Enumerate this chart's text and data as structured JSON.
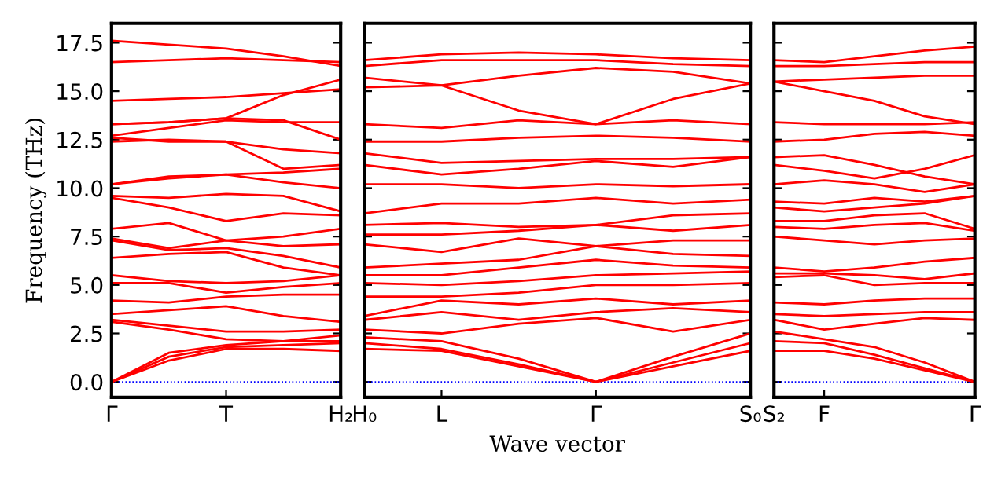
{
  "chart_data": [
    {
      "type": "line",
      "ylabel": "Frequency (THz)",
      "categories": [
        "Γ",
        null,
        "T",
        null,
        "H₂"
      ],
      "ylim": [
        -0.8,
        18.5
      ],
      "yticks": [
        {
          "value": 0,
          "label": "0.0"
        },
        {
          "value": 2.5,
          "label": "2.5"
        },
        {
          "value": 5,
          "label": "5.0"
        },
        {
          "value": 7.5,
          "label": "7.5"
        },
        {
          "value": 10,
          "label": "10.0"
        },
        {
          "value": 12.5,
          "label": "12.5"
        },
        {
          "value": 15,
          "label": "15.0"
        },
        {
          "value": 17.5,
          "label": "17.5"
        }
      ],
      "grid": false,
      "marker": "none",
      "line_style": "solid",
      "ref_lines": [
        {
          "axis": "y",
          "value": 0,
          "color": "#0000ff",
          "line_style": "dotted"
        }
      ],
      "series": [
        {
          "color": "#ff0000",
          "values": [
            0,
            1.1,
            1.7,
            1.7,
            1.6
          ]
        },
        {
          "color": "#ff0000",
          "values": [
            0,
            1.3,
            1.8,
            1.9,
            2.0
          ]
        },
        {
          "color": "#ff0000",
          "values": [
            0,
            1.5,
            1.9,
            2.1,
            2.4
          ]
        },
        {
          "color": "#ff0000",
          "values": [
            3.1,
            2.7,
            2.2,
            2.1,
            2.1
          ]
        },
        {
          "color": "#ff0000",
          "values": [
            3.2,
            2.9,
            2.6,
            2.6,
            2.7
          ]
        },
        {
          "color": "#ff0000",
          "values": [
            3.5,
            3.7,
            3.9,
            3.4,
            3.1
          ]
        },
        {
          "color": "#ff0000",
          "values": [
            4.2,
            4.1,
            4.4,
            4.5,
            4.5
          ]
        },
        {
          "color": "#ff0000",
          "values": [
            5.1,
            5.1,
            4.6,
            4.9,
            5.1
          ]
        },
        {
          "color": "#ff0000",
          "values": [
            5.5,
            5.2,
            5.1,
            5.2,
            5.5
          ]
        },
        {
          "color": "#ff0000",
          "values": [
            6.4,
            6.6,
            6.7,
            5.9,
            5.5
          ]
        },
        {
          "color": "#ff0000",
          "values": [
            7.3,
            6.8,
            6.9,
            6.5,
            5.9
          ]
        },
        {
          "color": "#ff0000",
          "values": [
            7.4,
            6.9,
            7.3,
            7.0,
            7.1
          ]
        },
        {
          "color": "#ff0000",
          "values": [
            7.9,
            8.2,
            7.3,
            7.5,
            7.9
          ]
        },
        {
          "color": "#ff0000",
          "values": [
            9.5,
            9.0,
            8.3,
            8.7,
            8.6
          ]
        },
        {
          "color": "#ff0000",
          "values": [
            9.6,
            9.5,
            9.7,
            9.6,
            8.8
          ]
        },
        {
          "color": "#ff0000",
          "values": [
            10.2,
            10.5,
            10.7,
            10.3,
            10.0
          ]
        },
        {
          "color": "#ff0000",
          "values": [
            10.2,
            10.6,
            10.7,
            10.8,
            11.0
          ]
        },
        {
          "color": "#ff0000",
          "values": [
            12.4,
            12.5,
            12.4,
            11.0,
            11.2
          ]
        },
        {
          "color": "#ff0000",
          "values": [
            12.6,
            12.4,
            12.4,
            12.0,
            11.8
          ]
        },
        {
          "color": "#ff0000",
          "values": [
            12.7,
            13.1,
            13.5,
            13.4,
            13.4
          ]
        },
        {
          "color": "#ff0000",
          "values": [
            13.3,
            13.4,
            13.6,
            13.5,
            12.5
          ]
        },
        {
          "color": "#ff0000",
          "values": [
            13.3,
            13.4,
            13.6,
            14.8,
            15.6
          ]
        },
        {
          "color": "#ff0000",
          "values": [
            14.5,
            14.6,
            14.7,
            14.9,
            15.1
          ]
        },
        {
          "color": "#ff0000",
          "values": [
            16.5,
            16.6,
            16.7,
            16.6,
            16.5
          ]
        },
        {
          "color": "#ff0000",
          "values": [
            17.6,
            17.4,
            17.2,
            16.8,
            16.3
          ]
        }
      ]
    },
    {
      "type": "line",
      "xlabel": "Wave vector",
      "categories": [
        "H₀",
        "L",
        null,
        "Γ",
        null,
        "S₀"
      ],
      "ylim": [
        -0.8,
        18.5
      ],
      "yticks": [
        {
          "value": 0,
          "label": null
        },
        {
          "value": 2.5,
          "label": null
        },
        {
          "value": 5,
          "label": null
        },
        {
          "value": 7.5,
          "label": null
        },
        {
          "value": 10,
          "label": null
        },
        {
          "value": 12.5,
          "label": null
        },
        {
          "value": 15,
          "label": null
        },
        {
          "value": 17.5,
          "label": null
        }
      ],
      "tick_labels": "x",
      "grid": false,
      "marker": "none",
      "line_style": "solid",
      "ref_lines": [
        {
          "axis": "y",
          "value": 0,
          "color": "#0000ff",
          "line_style": "dotted"
        }
      ],
      "series": [
        {
          "color": "#ff0000",
          "values": [
            1.7,
            1.6,
            0.8,
            0,
            0.8,
            1.6
          ]
        },
        {
          "color": "#ff0000",
          "values": [
            2.0,
            1.7,
            0.9,
            0,
            1.0,
            2.0
          ]
        },
        {
          "color": "#ff0000",
          "values": [
            2.3,
            2.1,
            1.2,
            0,
            1.3,
            2.5
          ]
        },
        {
          "color": "#ff0000",
          "values": [
            2.7,
            2.5,
            3.0,
            3.3,
            2.6,
            3.2
          ]
        },
        {
          "color": "#ff0000",
          "values": [
            3.2,
            3.6,
            3.2,
            3.6,
            3.8,
            3.6
          ]
        },
        {
          "color": "#ff0000",
          "values": [
            3.4,
            4.2,
            4.0,
            4.3,
            4.0,
            4.2
          ]
        },
        {
          "color": "#ff0000",
          "values": [
            4.4,
            4.4,
            4.6,
            5.0,
            5.0,
            5.1
          ]
        },
        {
          "color": "#ff0000",
          "values": [
            5.1,
            5.0,
            5.2,
            5.5,
            5.6,
            5.7
          ]
        },
        {
          "color": "#ff0000",
          "values": [
            5.5,
            5.5,
            5.9,
            6.3,
            6.0,
            5.9
          ]
        },
        {
          "color": "#ff0000",
          "values": [
            5.9,
            6.1,
            6.3,
            7.0,
            6.6,
            6.5
          ]
        },
        {
          "color": "#ff0000",
          "values": [
            7.1,
            6.7,
            7.4,
            7.0,
            7.3,
            7.3
          ]
        },
        {
          "color": "#ff0000",
          "values": [
            7.6,
            7.6,
            7.8,
            8.1,
            7.8,
            8.1
          ]
        },
        {
          "color": "#ff0000",
          "values": [
            8.1,
            8.2,
            8.0,
            8.1,
            8.6,
            8.7
          ]
        },
        {
          "color": "#ff0000",
          "values": [
            8.7,
            9.2,
            9.2,
            9.5,
            9.2,
            9.4
          ]
        },
        {
          "color": "#ff0000",
          "values": [
            10.2,
            10.2,
            10.0,
            10.2,
            10.1,
            10.2
          ]
        },
        {
          "color": "#ff0000",
          "values": [
            11.2,
            10.7,
            11.0,
            11.4,
            11.1,
            11.6
          ]
        },
        {
          "color": "#ff0000",
          "values": [
            11.8,
            11.3,
            11.4,
            11.5,
            11.5,
            11.6
          ]
        },
        {
          "color": "#ff0000",
          "values": [
            12.4,
            12.4,
            12.6,
            12.7,
            12.6,
            12.4
          ]
        },
        {
          "color": "#ff0000",
          "values": [
            13.3,
            13.1,
            13.5,
            13.3,
            13.5,
            13.3
          ]
        },
        {
          "color": "#ff0000",
          "values": [
            15.2,
            15.3,
            14.0,
            13.3,
            14.6,
            15.4
          ]
        },
        {
          "color": "#ff0000",
          "values": [
            15.7,
            15.3,
            15.8,
            16.2,
            16.0,
            15.4
          ]
        },
        {
          "color": "#ff0000",
          "values": [
            16.3,
            16.6,
            16.6,
            16.6,
            16.4,
            16.3
          ]
        },
        {
          "color": "#ff0000",
          "values": [
            16.6,
            16.9,
            17.0,
            16.9,
            16.7,
            16.6
          ]
        }
      ]
    },
    {
      "type": "line",
      "categories": [
        "S₂",
        "F",
        null,
        null,
        "Γ"
      ],
      "ylim": [
        -0.8,
        18.5
      ],
      "yticks": [
        {
          "value": 0,
          "label": null
        },
        {
          "value": 2.5,
          "label": null
        },
        {
          "value": 5,
          "label": null
        },
        {
          "value": 7.5,
          "label": null
        },
        {
          "value": 10,
          "label": null
        },
        {
          "value": 12.5,
          "label": null
        },
        {
          "value": 15,
          "label": null
        },
        {
          "value": 17.5,
          "label": null
        }
      ],
      "tick_labels": "x",
      "grid": false,
      "marker": "none",
      "line_style": "solid",
      "ref_lines": [
        {
          "axis": "y",
          "value": 0,
          "color": "#0000ff",
          "line_style": "dotted"
        }
      ],
      "series": [
        {
          "color": "#ff0000",
          "values": [
            1.6,
            1.6,
            1.2,
            0.6,
            0
          ]
        },
        {
          "color": "#ff0000",
          "values": [
            2.1,
            2.0,
            1.4,
            0.7,
            0
          ]
        },
        {
          "color": "#ff0000",
          "values": [
            2.6,
            2.2,
            1.8,
            1.0,
            0
          ]
        },
        {
          "color": "#ff0000",
          "values": [
            3.2,
            2.7,
            3.0,
            3.3,
            3.2
          ]
        },
        {
          "color": "#ff0000",
          "values": [
            3.5,
            3.4,
            3.5,
            3.6,
            3.6
          ]
        },
        {
          "color": "#ff0000",
          "values": [
            4.1,
            4.0,
            4.2,
            4.3,
            4.3
          ]
        },
        {
          "color": "#ff0000",
          "values": [
            5.4,
            5.5,
            5.0,
            5.1,
            5.1
          ]
        },
        {
          "color": "#ff0000",
          "values": [
            5.6,
            5.6,
            5.5,
            5.3,
            5.6
          ]
        },
        {
          "color": "#ff0000",
          "values": [
            5.9,
            5.7,
            5.9,
            6.2,
            6.4
          ]
        },
        {
          "color": "#ff0000",
          "values": [
            7.5,
            7.3,
            7.1,
            7.3,
            7.4
          ]
        },
        {
          "color": "#ff0000",
          "values": [
            8.0,
            7.9,
            8.1,
            8.2,
            7.8
          ]
        },
        {
          "color": "#ff0000",
          "values": [
            8.3,
            8.3,
            8.6,
            8.7,
            7.9
          ]
        },
        {
          "color": "#ff0000",
          "values": [
            9.0,
            8.8,
            9.0,
            9.2,
            9.6
          ]
        },
        {
          "color": "#ff0000",
          "values": [
            9.3,
            9.2,
            9.5,
            9.3,
            9.6
          ]
        },
        {
          "color": "#ff0000",
          "values": [
            10.2,
            10.4,
            10.2,
            9.8,
            10.2
          ]
        },
        {
          "color": "#ff0000",
          "values": [
            11.2,
            10.9,
            10.5,
            11.0,
            11.7
          ]
        },
        {
          "color": "#ff0000",
          "values": [
            11.6,
            11.7,
            11.2,
            10.6,
            10.2
          ]
        },
        {
          "color": "#ff0000",
          "values": [
            12.4,
            12.5,
            12.8,
            12.9,
            12.7
          ]
        },
        {
          "color": "#ff0000",
          "values": [
            13.4,
            13.3,
            13.3,
            13.3,
            13.4
          ]
        },
        {
          "color": "#ff0000",
          "values": [
            15.5,
            15.0,
            14.5,
            13.7,
            13.3
          ]
        },
        {
          "color": "#ff0000",
          "values": [
            15.5,
            15.6,
            15.7,
            15.8,
            15.8
          ]
        },
        {
          "color": "#ff0000",
          "values": [
            16.3,
            16.3,
            16.4,
            16.5,
            16.5
          ]
        },
        {
          "color": "#ff0000",
          "values": [
            16.6,
            16.5,
            16.8,
            17.1,
            17.3
          ]
        }
      ]
    }
  ]
}
